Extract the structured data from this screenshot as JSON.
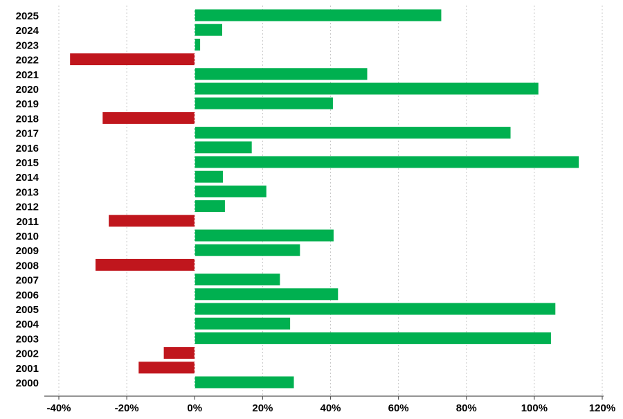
{
  "colors": {
    "positive": "#00b050",
    "negative": "#c0161d",
    "grid": "#c8c8c8",
    "axis": "#555555",
    "text": "#000000"
  },
  "chart_data": {
    "type": "bar",
    "orientation": "horizontal",
    "title": "",
    "xlabel": "",
    "ylabel": "",
    "xlim": [
      -40,
      120
    ],
    "grid": true,
    "legend": "none",
    "xticks": [
      {
        "value": -40,
        "label": "-40%"
      },
      {
        "value": -20,
        "label": "-20%"
      },
      {
        "value": 0,
        "label": "0%"
      },
      {
        "value": 20,
        "label": "20%"
      },
      {
        "value": 40,
        "label": "40%"
      },
      {
        "value": 60,
        "label": "60%"
      },
      {
        "value": 80,
        "label": "80%"
      },
      {
        "value": 100,
        "label": "100%"
      },
      {
        "value": 120,
        "label": "120%"
      }
    ],
    "categories": [
      "2025",
      "2024",
      "2023",
      "2022",
      "2021",
      "2020",
      "2019",
      "2018",
      "2017",
      "2016",
      "2015",
      "2014",
      "2013",
      "2012",
      "2011",
      "2010",
      "2009",
      "2008",
      "2007",
      "2006",
      "2005",
      "2004",
      "2003",
      "2002",
      "2001",
      "2000"
    ],
    "values": [
      72.6,
      8.1,
      1.6,
      -36.7,
      50.8,
      101.2,
      40.7,
      -27.1,
      93.0,
      16.8,
      113.1,
      8.3,
      21.1,
      8.9,
      -25.3,
      40.9,
      31.0,
      -29.2,
      25.1,
      42.2,
      106.2,
      28.1,
      104.9,
      -9.1,
      -16.5,
      29.2
    ]
  }
}
